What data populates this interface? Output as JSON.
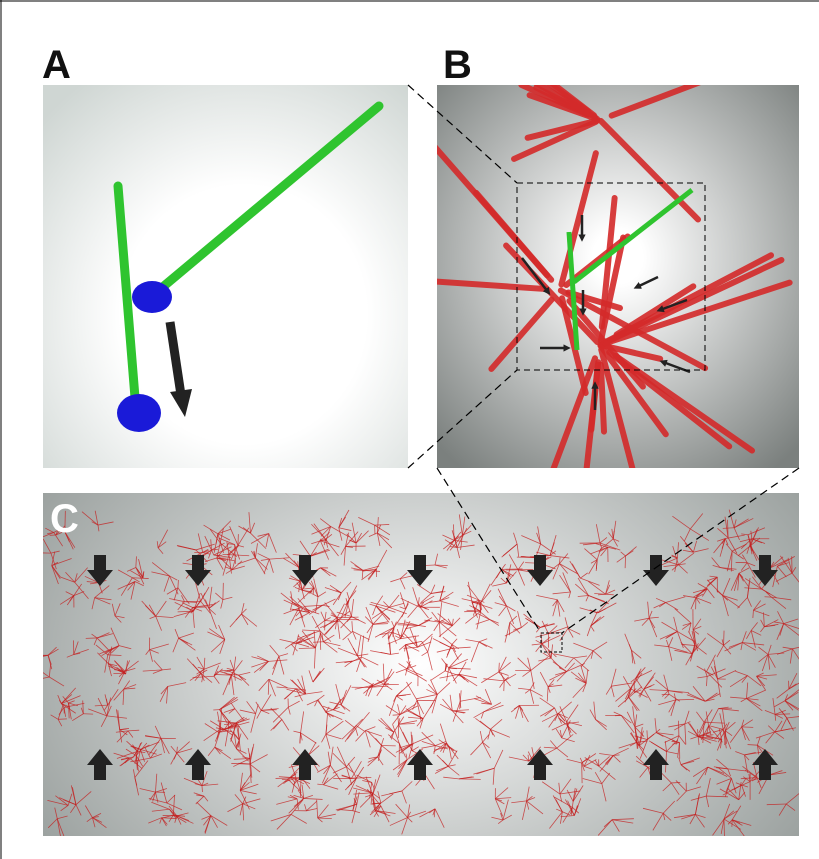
{
  "panels": {
    "a": {
      "label": "A"
    },
    "b": {
      "label": "B"
    },
    "c": {
      "label": "C"
    }
  }
}
